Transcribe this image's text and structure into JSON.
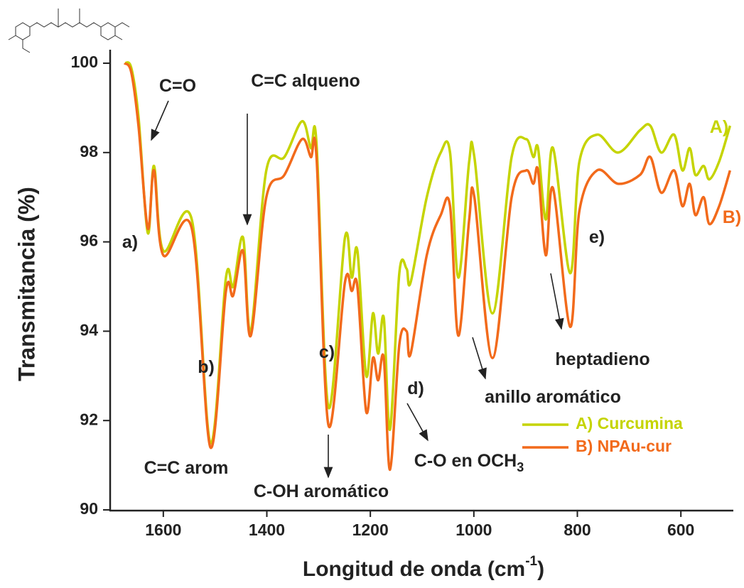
{
  "chart_data": {
    "type": "line",
    "x_label": [
      "Longitud de onda (cm",
      "-1",
      ")"
    ],
    "y_label": "Transmitancia (%)",
    "xlim": [
      1700,
      500
    ],
    "ylim": [
      90,
      100
    ],
    "xticks": [
      1600,
      1400,
      1200,
      1000,
      800,
      600
    ],
    "yticks": [
      90,
      92,
      94,
      96,
      98,
      100
    ],
    "x": [
      1675,
      1662,
      1648,
      1630,
      1618,
      1600,
      1545,
      1509,
      1479,
      1465,
      1446,
      1431,
      1401,
      1366,
      1332,
      1315,
      1304,
      1281,
      1249,
      1236,
      1225,
      1208,
      1195,
      1185,
      1174,
      1162,
      1144,
      1130,
      1122,
      1091,
      1064,
      1046,
      1030,
      1009,
      999,
      964,
      927,
      899,
      885,
      876,
      861,
      847,
      814,
      796,
      762,
      721,
      679,
      659,
      638,
      613,
      597,
      583,
      572,
      556,
      545,
      526,
      505
    ],
    "series": [
      {
        "name": "A) Curcumina",
        "color": "#c5d400",
        "values": [
          100,
          99.9,
          98.8,
          96.2,
          97.7,
          95.8,
          96.5,
          91.5,
          95.2,
          95.0,
          96.1,
          94.0,
          97.6,
          97.9,
          98.7,
          98.1,
          98.2,
          92.3,
          96.1,
          95.2,
          95.8,
          93.0,
          94.4,
          93.5,
          94.3,
          91.8,
          95.3,
          95.4,
          95.1,
          97.0,
          98.0,
          98.0,
          95.2,
          97.8,
          97.9,
          94.4,
          97.9,
          98.3,
          97.9,
          98.1,
          96.5,
          98.1,
          95.3,
          97.8,
          98.4,
          98.0,
          98.5,
          98.6,
          98.0,
          98.4,
          97.6,
          98.1,
          97.5,
          97.7,
          97.4,
          97.8,
          98.6
        ]
      },
      {
        "name": "B) NPAu-cur",
        "color": "#f26a1b",
        "values": [
          100,
          99.8,
          98.6,
          96.3,
          97.6,
          95.7,
          96.3,
          91.4,
          94.9,
          94.8,
          95.8,
          93.9,
          97.0,
          97.5,
          98.3,
          97.9,
          97.9,
          91.9,
          95.1,
          94.9,
          95.0,
          92.2,
          93.4,
          92.9,
          93.4,
          90.9,
          93.7,
          94.0,
          93.5,
          95.7,
          96.6,
          96.8,
          93.9,
          96.5,
          97.0,
          93.4,
          97.0,
          97.6,
          97.3,
          97.6,
          95.7,
          97.2,
          94.1,
          96.7,
          97.6,
          97.3,
          97.5,
          97.9,
          97.1,
          97.6,
          96.8,
          97.3,
          96.6,
          97.0,
          96.4,
          96.8,
          97.6
        ]
      }
    ],
    "annotations": [
      {
        "text": "C=O"
      },
      {
        "text": "C=C alqueno"
      },
      {
        "text": "a)"
      },
      {
        "text": "b)"
      },
      {
        "text": "c)"
      },
      {
        "text": "d)"
      },
      {
        "text": "e)"
      },
      {
        "text": "C=C arom"
      },
      {
        "text": "C-OH aromático"
      },
      {
        "text": "C-O en OCH",
        "subscript": "3"
      },
      {
        "text": "anillo aromático"
      },
      {
        "text": "heptadieno"
      },
      {
        "text": "A)",
        "color": "#c5d400"
      },
      {
        "text": "B)",
        "color": "#f26a1b"
      }
    ],
    "legend": "lower right"
  }
}
